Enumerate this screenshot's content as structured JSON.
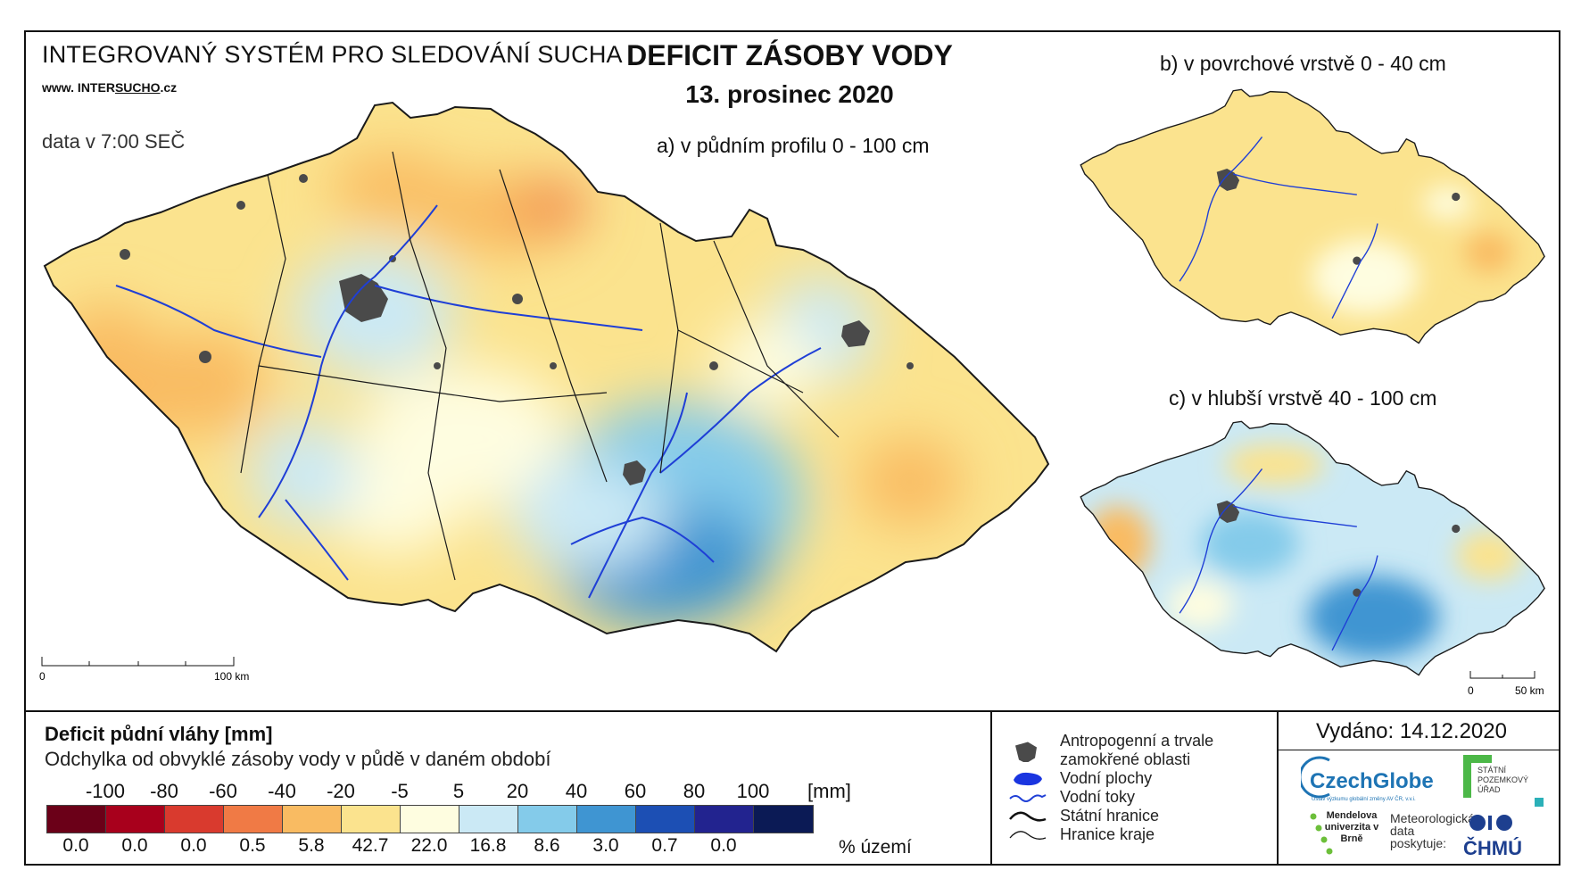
{
  "header": {
    "system_name": "INTEGROVANÝ SYSTÉM PRO SLEDOVÁNÍ SUCHA",
    "website_prefix": "www. INTER",
    "website_underlined": "SUCHO",
    "website_suffix": ".cz",
    "data_time": "data v 7:00 SEČ",
    "title": "DEFICIT ZÁSOBY VODY",
    "date": "13. prosinec 2020"
  },
  "maps": {
    "a_label": "a) v půdním profilu 0 - 100 cm",
    "b_label": "b) v povrchové vrstvě 0 - 40 cm",
    "c_label": "c) v hlubší vrstvě 40 - 100 cm",
    "main_scale": {
      "start": "0",
      "end": "100 km"
    },
    "small_scale": {
      "start": "0",
      "end": "50 km"
    }
  },
  "legend": {
    "title": "Deficit půdní vláhy  [mm]",
    "subtitle": "Odchylka od obvyklé zásoby vody v půdě v daném období",
    "ticks": [
      "-100",
      "-80",
      "-60",
      "-40",
      "-20",
      "-5",
      "5",
      "20",
      "40",
      "60",
      "80",
      "100"
    ],
    "unit": "[mm]",
    "classes": [
      {
        "color": "#6b0018",
        "percent": "0.0"
      },
      {
        "color": "#a8001c",
        "percent": "0.0"
      },
      {
        "color": "#d93a2e",
        "percent": "0.0"
      },
      {
        "color": "#f07a45",
        "percent": "0.5"
      },
      {
        "color": "#f9bb62",
        "percent": "5.8"
      },
      {
        "color": "#fbe38e",
        "percent": "42.7"
      },
      {
        "color": "#fefde0",
        "percent": "22.0"
      },
      {
        "color": "#cbe9f5",
        "percent": "16.8"
      },
      {
        "color": "#84cbea",
        "percent": "8.6"
      },
      {
        "color": "#3f95d2",
        "percent": "3.0"
      },
      {
        "color": "#1c4fb4",
        "percent": "0.7"
      },
      {
        "color": "#22238f",
        "percent": "0.0"
      },
      {
        "color": "#0b1a55",
        "percent": ""
      }
    ],
    "percent_unit": "% území"
  },
  "symbols": {
    "items": [
      {
        "icon": "urban-area-icon",
        "label": "Antropogenní a trvale"
      },
      {
        "icon": "",
        "label": "zamokřené oblasti"
      },
      {
        "icon": "water-body-icon",
        "label": "Vodní plochy"
      },
      {
        "icon": "river-icon",
        "label": "Vodní toky"
      },
      {
        "icon": "state-border-icon",
        "label": "Státní hranice"
      },
      {
        "icon": "region-border-icon",
        "label": "Hranice kraje"
      }
    ]
  },
  "footer": {
    "issued": "Vydáno: 14.12.2020",
    "czechglobe": "CzechGlobe",
    "czechglobe_sub": "Ústav výzkumu globální změny AV ČR, v.v.i.",
    "spu": "STÁTNÍ POZEMKOVÝ ÚŘAD",
    "mendelu": "Mendelova univerzita v Brně",
    "meteo": "Meteorologická data poskytuje:",
    "chmu": "ČHMÚ"
  },
  "colors": {
    "frame": "#111111",
    "river": "#1f3fd6",
    "urban": "#4a4a4a",
    "border": "#1a1a1a"
  }
}
